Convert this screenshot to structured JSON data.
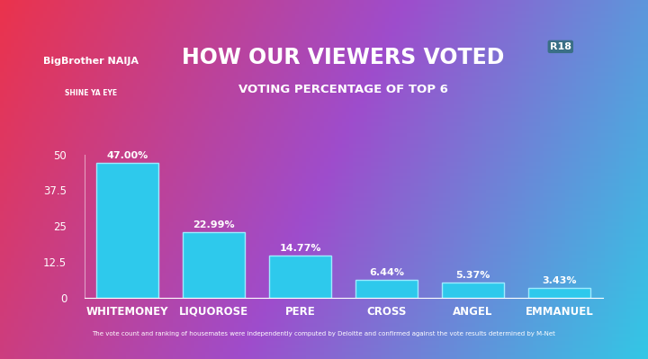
{
  "chart_data": {
    "type": "bar",
    "title": "HOW OUR VIEWERS VOTED",
    "subtitle": "VOTING PERCENTAGE OF TOP 6",
    "annotations": [
      "BigBrother NAIJA",
      "SHINE YA EYE",
      "R18",
      "The vote count and ranking of housemates were independently computed by Deloitte and confirmed against the vote results determined by M-Net"
    ],
    "categories": [
      "WHITEMONEY",
      "LIQUOROSE",
      "PERE",
      "CROSS",
      "ANGEL",
      "EMMANUEL"
    ],
    "values": [
      47.0,
      22.99,
      14.77,
      6.44,
      5.37,
      3.43
    ],
    "value_labels": [
      "47.00%",
      "22.99%",
      "14.77%",
      "6.44%",
      "5.37%",
      "3.43%"
    ],
    "color": "#2ec9ec",
    "ylim": [
      0,
      50
    ],
    "yticks": [
      0,
      12.5,
      25,
      37.5,
      50
    ],
    "grid": false,
    "data_labels": true
  }
}
